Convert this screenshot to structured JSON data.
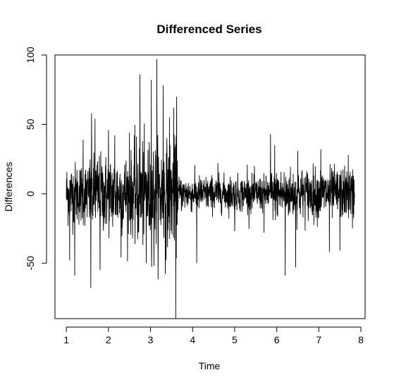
{
  "chart_data": {
    "type": "line",
    "title": "Differenced Series",
    "xlabel": "Time",
    "ylabel": "Differences",
    "xlim": [
      0.73,
      8.1
    ],
    "ylim": [
      -90,
      100
    ],
    "x_ticks": [
      "1",
      "2",
      "3",
      "4",
      "5",
      "6",
      "7",
      "8"
    ],
    "y_ticks": [
      "-50",
      "0",
      "50",
      "100"
    ],
    "grid": false,
    "line_color": "#000000",
    "x_range": [
      1,
      7.85
    ],
    "segments": [
      {
        "x_start": 1.0,
        "x_end": 1.55,
        "typical_abs": 16
      },
      {
        "x_start": 1.55,
        "x_end": 2.6,
        "typical_abs": 20
      },
      {
        "x_start": 2.6,
        "x_end": 3.65,
        "typical_abs": 26
      },
      {
        "x_start": 3.65,
        "x_end": 5.85,
        "typical_abs": 9
      },
      {
        "x_start": 5.85,
        "x_end": 7.85,
        "typical_abs": 13
      }
    ],
    "extremes": [
      {
        "x": 1.08,
        "y": 47
      },
      {
        "x": 1.08,
        "y": -48
      },
      {
        "x": 1.2,
        "y": -59
      },
      {
        "x": 1.4,
        "y": 39
      },
      {
        "x": 1.58,
        "y": -68
      },
      {
        "x": 1.6,
        "y": 58
      },
      {
        "x": 1.68,
        "y": 54
      },
      {
        "x": 1.8,
        "y": -55
      },
      {
        "x": 2.0,
        "y": 46
      },
      {
        "x": 2.15,
        "y": 42
      },
      {
        "x": 2.3,
        "y": -46
      },
      {
        "x": 2.5,
        "y": 44
      },
      {
        "x": 2.75,
        "y": 86
      },
      {
        "x": 2.9,
        "y": -50
      },
      {
        "x": 3.02,
        "y": 82
      },
      {
        "x": 3.08,
        "y": -52
      },
      {
        "x": 3.15,
        "y": 97
      },
      {
        "x": 3.3,
        "y": 78
      },
      {
        "x": 3.35,
        "y": -58
      },
      {
        "x": 3.45,
        "y": 55
      },
      {
        "x": 3.55,
        "y": 62
      },
      {
        "x": 3.6,
        "y": -90
      },
      {
        "x": 3.62,
        "y": 70
      },
      {
        "x": 4.1,
        "y": -50
      },
      {
        "x": 4.6,
        "y": 22
      },
      {
        "x": 5.0,
        "y": -27
      },
      {
        "x": 5.3,
        "y": 21
      },
      {
        "x": 5.7,
        "y": -28
      },
      {
        "x": 5.85,
        "y": 43
      },
      {
        "x": 5.95,
        "y": 35
      },
      {
        "x": 6.2,
        "y": -59
      },
      {
        "x": 6.45,
        "y": -53
      },
      {
        "x": 6.5,
        "y": 31
      },
      {
        "x": 7.05,
        "y": 32
      },
      {
        "x": 7.25,
        "y": -42
      },
      {
        "x": 7.5,
        "y": -41
      },
      {
        "x": 7.7,
        "y": 28
      },
      {
        "x": 7.8,
        "y": -25
      }
    ]
  }
}
